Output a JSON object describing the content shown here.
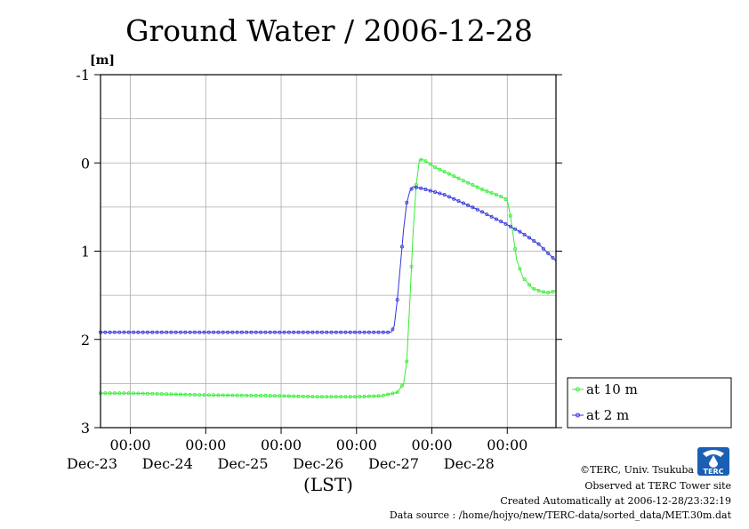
{
  "chart_data": {
    "type": "line",
    "title": "Ground Water / 2006-12-28",
    "ylabel": "[m]",
    "xlabel": "(LST)",
    "ylim": [
      -1,
      3
    ],
    "y_inverted": true,
    "y_ticks": [
      "-1",
      "0",
      "1",
      "2",
      "3"
    ],
    "x_range_hours_from_dec23_00": [
      -9.5,
      135.5
    ],
    "x_ticks": [
      {
        "time": "00:00",
        "date": "Dec-23"
      },
      {
        "time": "00:00",
        "date": "Dec-24"
      },
      {
        "time": "00:00",
        "date": "Dec-25"
      },
      {
        "time": "00:00",
        "date": "Dec-26"
      },
      {
        "time": "00:00",
        "date": "Dec-27"
      },
      {
        "time": "00:00",
        "date": "Dec-28"
      }
    ],
    "grid": true,
    "legend_position": "bottom-right",
    "series": [
      {
        "name": "at 10 m",
        "color": "#33ee33",
        "points": [
          [
            -9.5,
            2.61
          ],
          [
            0,
            2.61
          ],
          [
            24,
            2.63
          ],
          [
            48,
            2.64
          ],
          [
            60,
            2.65
          ],
          [
            72,
            2.65
          ],
          [
            80,
            2.64
          ],
          [
            85,
            2.6
          ],
          [
            87,
            2.5
          ],
          [
            88,
            2.25
          ],
          [
            89,
            1.55
          ],
          [
            90,
            0.8
          ],
          [
            91,
            0.25
          ],
          [
            92,
            -0.03
          ],
          [
            93,
            -0.04
          ],
          [
            95,
            0.0
          ],
          [
            97,
            0.05
          ],
          [
            100,
            0.1
          ],
          [
            106,
            0.2
          ],
          [
            112,
            0.3
          ],
          [
            118,
            0.38
          ],
          [
            120,
            0.42
          ],
          [
            121,
            0.6
          ],
          [
            122,
            0.85
          ],
          [
            123,
            1.1
          ],
          [
            125,
            1.3
          ],
          [
            128,
            1.42
          ],
          [
            131,
            1.46
          ],
          [
            133,
            1.47
          ],
          [
            135.5,
            1.45
          ]
        ]
      },
      {
        "name": "at 2 m",
        "color": "#3333dd",
        "points": [
          [
            -9.5,
            1.92
          ],
          [
            0,
            1.92
          ],
          [
            24,
            1.92
          ],
          [
            48,
            1.92
          ],
          [
            72,
            1.92
          ],
          [
            83,
            1.92
          ],
          [
            84,
            1.85
          ],
          [
            85,
            1.55
          ],
          [
            86,
            1.15
          ],
          [
            87,
            0.75
          ],
          [
            88,
            0.45
          ],
          [
            89,
            0.32
          ],
          [
            90,
            0.27
          ],
          [
            93,
            0.29
          ],
          [
            100,
            0.36
          ],
          [
            110,
            0.52
          ],
          [
            120,
            0.7
          ],
          [
            125,
            0.8
          ],
          [
            130,
            0.92
          ],
          [
            135.5,
            1.11
          ]
        ]
      }
    ]
  },
  "credits": {
    "copyright": "©TERC, Univ. Tsukuba",
    "observed": "Observed at TERC Tower site",
    "created": "Created Automatically at 2006-12-28/23:32:19",
    "source": "Data source : /home/hojyo/new/TERC-data/sorted_data/MET.30m.dat"
  },
  "logo": {
    "text": "TERC",
    "color": "#1a5fb4"
  }
}
